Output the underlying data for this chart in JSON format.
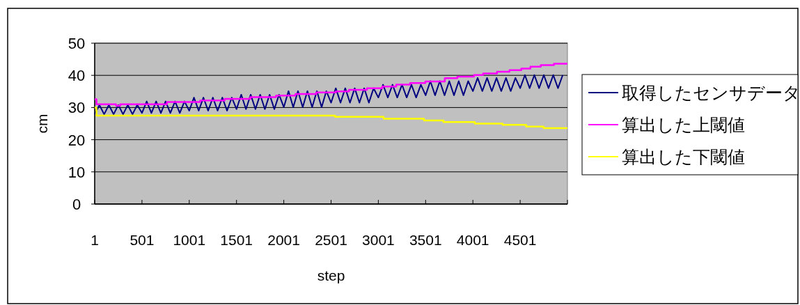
{
  "chart_data": {
    "type": "line",
    "xlabel": "step",
    "ylabel": "cm",
    "xlim": [
      1,
      5001
    ],
    "xticks": [
      1,
      501,
      1001,
      1501,
      2001,
      2501,
      3001,
      3501,
      4001,
      4501
    ],
    "ylim": [
      0,
      50
    ],
    "yticks": [
      0,
      10,
      20,
      30,
      40,
      50
    ],
    "grid": "y",
    "legend": "right",
    "marker": "none",
    "line_style": "solid",
    "series": [
      {
        "name": "取得したセンサデータ",
        "color": "#000080",
        "x": [
          1,
          51,
          101,
          151,
          201,
          251,
          301,
          351,
          401,
          451,
          501,
          551,
          601,
          651,
          701,
          751,
          801,
          851,
          901,
          951,
          1001,
          1051,
          1101,
          1151,
          1201,
          1251,
          1301,
          1351,
          1401,
          1451,
          1501,
          1551,
          1601,
          1651,
          1701,
          1751,
          1801,
          1851,
          1901,
          1951,
          2001,
          2051,
          2101,
          2151,
          2201,
          2251,
          2301,
          2351,
          2401,
          2451,
          2501,
          2551,
          2601,
          2651,
          2701,
          2751,
          2801,
          2851,
          2901,
          2951,
          3001,
          3051,
          3101,
          3151,
          3201,
          3251,
          3301,
          3351,
          3401,
          3451,
          3501,
          3551,
          3601,
          3651,
          3701,
          3751,
          3801,
          3851,
          3901,
          3951,
          4001,
          4051,
          4101,
          4151,
          4201,
          4251,
          4301,
          4351,
          4401,
          4451,
          4501,
          4551,
          4601,
          4651,
          4701,
          4751,
          4801,
          4851,
          4901,
          4951
        ],
        "values": [
          27.9,
          30.8,
          27.9,
          30.8,
          27.9,
          30.8,
          27.9,
          30.8,
          27.9,
          30.8,
          28.3,
          31.9,
          28.3,
          31.9,
          28.3,
          31.9,
          28.3,
          31.9,
          28.3,
          31.9,
          29.0,
          33.1,
          29.0,
          33.1,
          29.0,
          33.1,
          29.0,
          33.1,
          29.0,
          33.1,
          29.5,
          34.0,
          29.5,
          34.0,
          29.5,
          34.0,
          29.5,
          34.0,
          29.5,
          34.0,
          30.1,
          35.1,
          30.1,
          35.1,
          30.1,
          35.1,
          30.1,
          35.1,
          30.1,
          35.1,
          31.5,
          36.0,
          31.5,
          36.0,
          31.5,
          36.0,
          31.5,
          36.0,
          31.5,
          36.0,
          33.1,
          37.1,
          33.1,
          37.1,
          33.1,
          37.1,
          33.1,
          37.1,
          33.1,
          37.1,
          33.8,
          38.2,
          33.8,
          38.2,
          33.8,
          38.2,
          33.8,
          38.2,
          33.8,
          38.2,
          35.1,
          39.2,
          35.1,
          39.2,
          35.1,
          39.2,
          35.1,
          39.2,
          35.1,
          39.2,
          36.0,
          40.1,
          36.0,
          40.1,
          36.0,
          40.1,
          36.0,
          40.1,
          36.0,
          40.1
        ]
      },
      {
        "name": "算出した上閾値",
        "color": "#ff00ff",
        "type": "step",
        "x": [
          1,
          20,
          226,
          272,
          765,
          1117,
          1375,
          1647,
          1919,
          2124,
          2345,
          2551,
          2690,
          2881,
          3043,
          3190,
          3337,
          3498,
          3704,
          3837,
          4013,
          4109,
          4256,
          4388,
          4513,
          4609,
          4719,
          4858,
          5000
        ],
        "values": [
          32.6,
          31.0,
          30.6,
          31.0,
          31.7,
          32.2,
          32.7,
          33.2,
          33.7,
          34.2,
          34.7,
          35.0,
          35.5,
          36.0,
          36.5,
          37.1,
          37.6,
          38.1,
          39.1,
          39.6,
          40.1,
          40.6,
          41.1,
          41.6,
          42.1,
          42.7,
          43.2,
          43.6,
          43.6
        ]
      },
      {
        "name": "算出した下閾値",
        "color": "#ffff00",
        "type": "step",
        "x": [
          1,
          20,
          2543,
          3057,
          3484,
          3690,
          4021,
          4315,
          4564,
          4749,
          5000
        ],
        "values": [
          30.0,
          27.5,
          27.1,
          26.5,
          26.0,
          25.5,
          25.0,
          24.6,
          24.1,
          23.6,
          23.6
        ]
      }
    ]
  }
}
